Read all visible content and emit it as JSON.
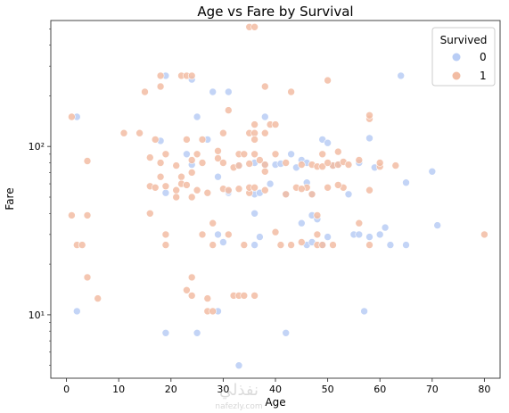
{
  "chart_data": {
    "type": "scatter",
    "title": "Age vs Fare by Survival",
    "xlabel": "Age",
    "ylabel": "Fare",
    "xlim": [
      -3,
      83
    ],
    "ylim": [
      4.2,
      560
    ],
    "yscale": "log",
    "x_ticks": [
      0,
      10,
      20,
      30,
      40,
      50,
      60,
      70,
      80
    ],
    "y_ticks": [
      10,
      100
    ],
    "y_tick_labels": [
      "10¹",
      "10²"
    ],
    "legend": {
      "title": "Survived",
      "placement": "top-right",
      "entries": [
        "0",
        "1"
      ]
    },
    "grid": false,
    "series": [
      {
        "name": "0",
        "color": "#b9cdf5",
        "points": [
          [
            2,
            150
          ],
          [
            19,
            263
          ],
          [
            24,
            250
          ],
          [
            25,
            150
          ],
          [
            28,
            211
          ],
          [
            31,
            211
          ],
          [
            38,
            150
          ],
          [
            64,
            263
          ],
          [
            2,
            10.5
          ],
          [
            19,
            7.8
          ],
          [
            25,
            7.8
          ],
          [
            33,
            5
          ],
          [
            42,
            7.8
          ],
          [
            57,
            10.5
          ],
          [
            29,
            10.5
          ],
          [
            18,
            108
          ],
          [
            23,
            90
          ],
          [
            27,
            110
          ],
          [
            29,
            66
          ],
          [
            31,
            53
          ],
          [
            33,
            77
          ],
          [
            36,
            80
          ],
          [
            40,
            78
          ],
          [
            43,
            90
          ],
          [
            45,
            83
          ],
          [
            46,
            61
          ],
          [
            47,
            52
          ],
          [
            49,
            110
          ],
          [
            50,
            105
          ],
          [
            51,
            77
          ],
          [
            52,
            78
          ],
          [
            54,
            52
          ],
          [
            55,
            30
          ],
          [
            56,
            30
          ],
          [
            58,
            112
          ],
          [
            58,
            29
          ],
          [
            60,
            30
          ],
          [
            61,
            33
          ],
          [
            62,
            26
          ],
          [
            65,
            61
          ],
          [
            65,
            26
          ],
          [
            70,
            71
          ],
          [
            71,
            34
          ],
          [
            19,
            53
          ],
          [
            29,
            30
          ],
          [
            30,
            27
          ],
          [
            36,
            40
          ],
          [
            37,
            29
          ],
          [
            45,
            35
          ],
          [
            46,
            26
          ],
          [
            47,
            39
          ],
          [
            47,
            27
          ],
          [
            48,
            37
          ],
          [
            49,
            26
          ],
          [
            50,
            29
          ],
          [
            39,
            60
          ],
          [
            56,
            80
          ],
          [
            38,
            78
          ],
          [
            46,
            80
          ],
          [
            36,
            26
          ],
          [
            44,
            75
          ],
          [
            24,
            78
          ],
          [
            41,
            79
          ],
          [
            31,
            54
          ],
          [
            36,
            52
          ],
          [
            42,
            52
          ],
          [
            59,
            75
          ],
          [
            37,
            53
          ]
        ]
      },
      {
        "name": "1",
        "color": "#f2bca3",
        "points": [
          [
            1,
            150
          ],
          [
            4,
            82
          ],
          [
            1,
            39
          ],
          [
            2,
            26
          ],
          [
            3,
            26
          ],
          [
            4,
            39
          ],
          [
            4,
            16.7
          ],
          [
            6,
            12.5
          ],
          [
            11,
            120
          ],
          [
            14,
            120
          ],
          [
            15,
            211
          ],
          [
            16,
            86
          ],
          [
            16,
            58
          ],
          [
            16,
            40
          ],
          [
            17,
            110
          ],
          [
            17,
            57
          ],
          [
            18,
            263
          ],
          [
            18,
            227
          ],
          [
            18,
            80
          ],
          [
            18,
            66
          ],
          [
            19,
            30
          ],
          [
            19,
            26
          ],
          [
            19,
            58
          ],
          [
            19,
            90
          ],
          [
            21,
            77
          ],
          [
            21,
            55
          ],
          [
            21,
            50
          ],
          [
            22,
            263
          ],
          [
            22,
            66
          ],
          [
            22,
            60
          ],
          [
            23,
            263
          ],
          [
            23,
            59
          ],
          [
            23,
            14
          ],
          [
            24,
            263
          ],
          [
            24,
            83
          ],
          [
            24,
            70
          ],
          [
            24,
            50
          ],
          [
            24,
            16.7
          ],
          [
            24,
            13
          ],
          [
            25,
            55
          ],
          [
            25,
            90
          ],
          [
            26,
            30
          ],
          [
            26,
            80
          ],
          [
            27,
            53
          ],
          [
            27,
            12.5
          ],
          [
            27,
            10.5
          ],
          [
            28,
            35
          ],
          [
            28,
            26
          ],
          [
            28,
            10.5
          ],
          [
            29,
            85
          ],
          [
            29,
            94
          ],
          [
            30,
            56
          ],
          [
            30,
            120
          ],
          [
            31,
            164
          ],
          [
            31,
            55
          ],
          [
            31,
            30
          ],
          [
            32,
            13
          ],
          [
            32,
            75
          ],
          [
            33,
            90
          ],
          [
            33,
            77
          ],
          [
            33,
            56
          ],
          [
            33,
            13
          ],
          [
            34,
            90
          ],
          [
            34,
            26
          ],
          [
            34,
            13
          ],
          [
            35,
            512
          ],
          [
            35,
            120
          ],
          [
            35,
            53
          ],
          [
            35,
            79
          ],
          [
            35,
            57
          ],
          [
            36,
            512
          ],
          [
            36,
            135
          ],
          [
            36,
            120
          ],
          [
            36,
            110
          ],
          [
            36,
            90
          ],
          [
            36,
            57
          ],
          [
            36,
            13
          ],
          [
            37,
            83
          ],
          [
            38,
            120
          ],
          [
            38,
            71
          ],
          [
            38,
            55
          ],
          [
            38,
            227
          ],
          [
            38,
            78
          ],
          [
            39,
            135
          ],
          [
            40,
            135
          ],
          [
            40,
            31
          ],
          [
            40,
            90
          ],
          [
            41,
            26
          ],
          [
            42,
            52
          ],
          [
            42,
            80
          ],
          [
            43,
            211
          ],
          [
            43,
            26
          ],
          [
            44,
            57
          ],
          [
            45,
            27
          ],
          [
            45,
            78
          ],
          [
            46,
            57
          ],
          [
            47,
            52
          ],
          [
            47,
            78
          ],
          [
            48,
            39
          ],
          [
            48,
            26
          ],
          [
            48,
            76
          ],
          [
            49,
            76
          ],
          [
            49,
            90
          ],
          [
            49,
            26
          ],
          [
            50,
            247
          ],
          [
            50,
            57
          ],
          [
            51,
            26
          ],
          [
            51,
            77
          ],
          [
            52,
            78
          ],
          [
            52,
            93
          ],
          [
            53,
            81
          ],
          [
            53,
            57
          ],
          [
            54,
            78
          ],
          [
            56,
            83
          ],
          [
            56,
            35
          ],
          [
            58,
            146
          ],
          [
            58,
            153
          ],
          [
            58,
            26
          ],
          [
            58,
            55
          ],
          [
            60,
            76
          ],
          [
            60,
            80
          ],
          [
            63,
            77
          ],
          [
            80,
            30
          ],
          [
            52,
            59
          ],
          [
            26,
            110
          ],
          [
            23,
            110
          ],
          [
            30,
            80
          ],
          [
            45,
            56
          ],
          [
            48,
            30
          ],
          [
            50,
            80
          ]
        ]
      }
    ]
  },
  "watermark": {
    "brand": "نفذلي",
    "site": "nafezly.com"
  }
}
